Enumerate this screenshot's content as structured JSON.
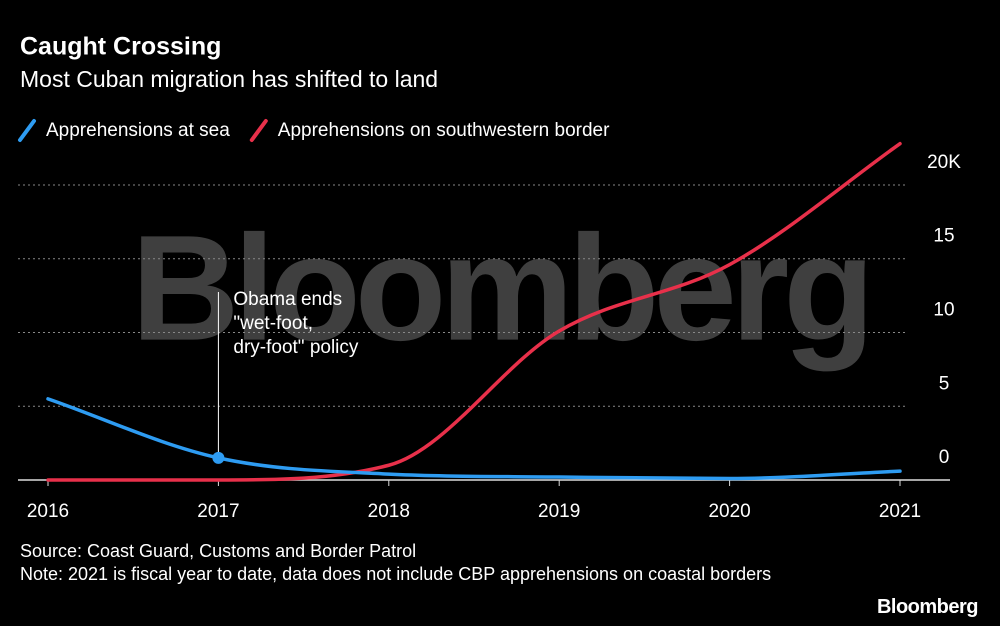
{
  "chart_data": {
    "type": "line",
    "title": "Caught Crossing",
    "subtitle": "Most Cuban migration has shifted to land",
    "x": [
      2016,
      2017,
      2018,
      2019,
      2020,
      2021
    ],
    "series": [
      {
        "name": "Apprehensions at sea",
        "color": "#2e9cf2",
        "values": [
          5.5,
          1.5,
          0.4,
          0.2,
          0.1,
          0.6
        ]
      },
      {
        "name": "Apprehensions on southwestern border",
        "color": "#e8304a",
        "values": [
          0,
          0,
          1.0,
          10.1,
          14.6,
          22.8
        ]
      }
    ],
    "xlim": [
      2016,
      2021
    ],
    "xticks": [
      2016,
      2017,
      2018,
      2019,
      2020,
      2021
    ],
    "ylim": [
      0,
      23
    ],
    "yticks": [
      0,
      5,
      10,
      15,
      {
        "value": 20,
        "label": "20K"
      }
    ],
    "grid": true,
    "legend": "top",
    "annotation": {
      "x": 2017,
      "lines": [
        "Obama ends",
        "\"wet-foot,",
        "dry-foot\" policy"
      ]
    },
    "watermark": "Bloomberg",
    "source": "Source: Coast Guard, Customs and Border Patrol",
    "note": "Note: 2021 is fiscal year to date, data does not include CBP apprehensions on coastal borders",
    "brand": "Bloomberg"
  }
}
